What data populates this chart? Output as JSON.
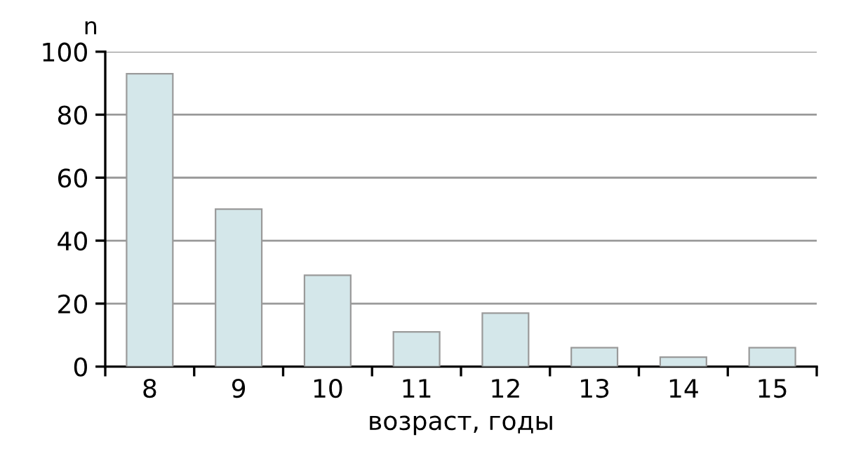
{
  "chart_data": {
    "type": "bar",
    "ylabel": "n",
    "xlabel": "возраст, годы",
    "categories": [
      "8",
      "9",
      "10",
      "11",
      "12",
      "13",
      "14",
      "15"
    ],
    "values": [
      93,
      50,
      29,
      11,
      17,
      6,
      3,
      6
    ],
    "color": "#d4e7ea",
    "ylim": [
      0,
      100
    ],
    "yticks": [
      0,
      20,
      40,
      60,
      80,
      100
    ],
    "grid": "y"
  }
}
